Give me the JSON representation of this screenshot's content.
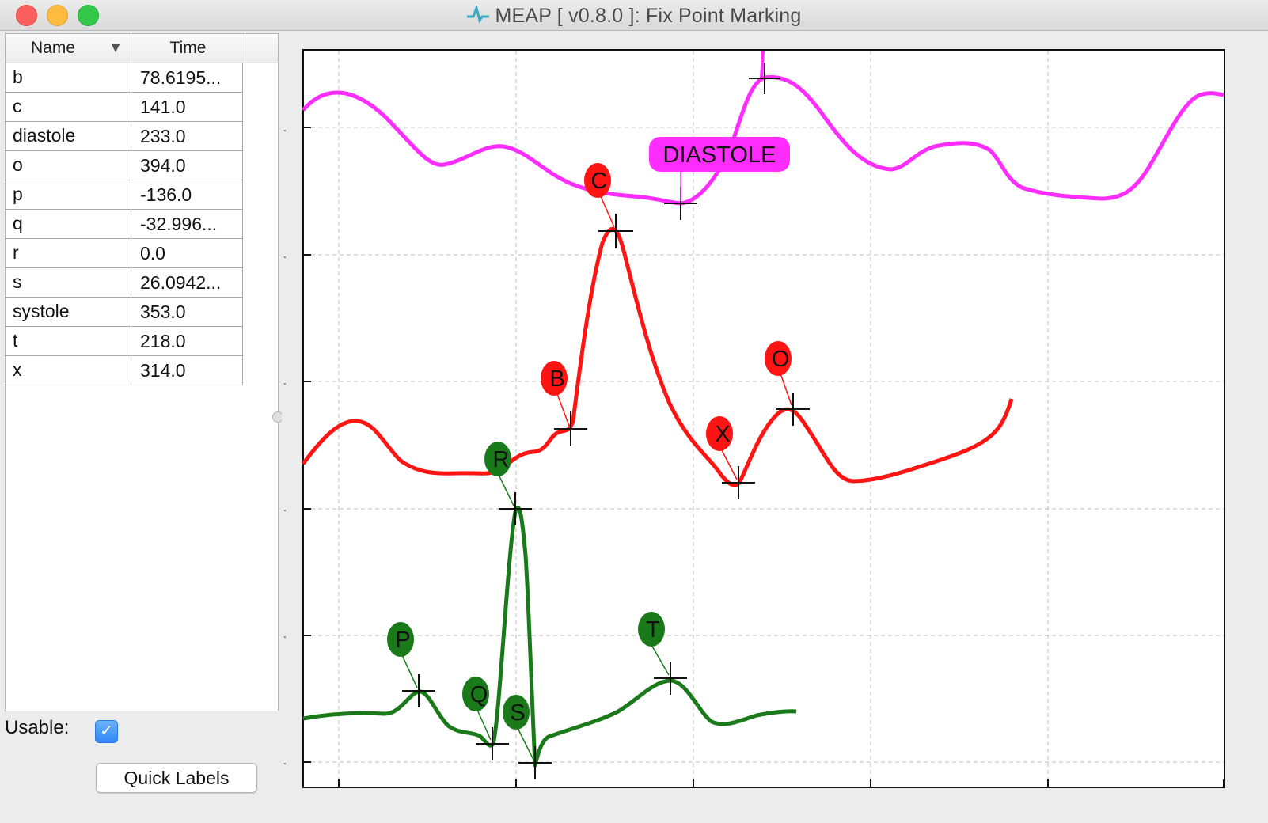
{
  "window": {
    "title": "MEAP [ v0.8.0 ]: Fix Point Marking"
  },
  "table": {
    "headers": {
      "name": "Name",
      "time": "Time"
    },
    "rows": [
      {
        "name": "b",
        "time": "78.6195..."
      },
      {
        "name": "c",
        "time": "141.0"
      },
      {
        "name": "diastole",
        "time": "233.0"
      },
      {
        "name": "o",
        "time": "394.0"
      },
      {
        "name": "p",
        "time": "-136.0"
      },
      {
        "name": "q",
        "time": "-32.996..."
      },
      {
        "name": "r",
        "time": "0.0"
      },
      {
        "name": "s",
        "time": "26.0942..."
      },
      {
        "name": "systole",
        "time": "353.0"
      },
      {
        "name": "t",
        "time": "218.0"
      },
      {
        "name": "x",
        "time": "314.0"
      }
    ]
  },
  "controls": {
    "usable_label": "Usable:",
    "usable_checked": true,
    "quick_labels": "Quick Labels"
  },
  "colors": {
    "ecg": "#1a7a1a",
    "dzdt": "#ff1414",
    "bp": "#ff2cff"
  },
  "markers": [
    {
      "label": "DIASTOLE",
      "series": "bp"
    },
    {
      "label": "C",
      "series": "dzdt"
    },
    {
      "label": "B",
      "series": "dzdt"
    },
    {
      "label": "X",
      "series": "dzdt"
    },
    {
      "label": "O",
      "series": "dzdt"
    },
    {
      "label": "R",
      "series": "ecg"
    },
    {
      "label": "P",
      "series": "ecg"
    },
    {
      "label": "Q",
      "series": "ecg"
    },
    {
      "label": "S",
      "series": "ecg"
    },
    {
      "label": "T",
      "series": "ecg"
    }
  ]
}
